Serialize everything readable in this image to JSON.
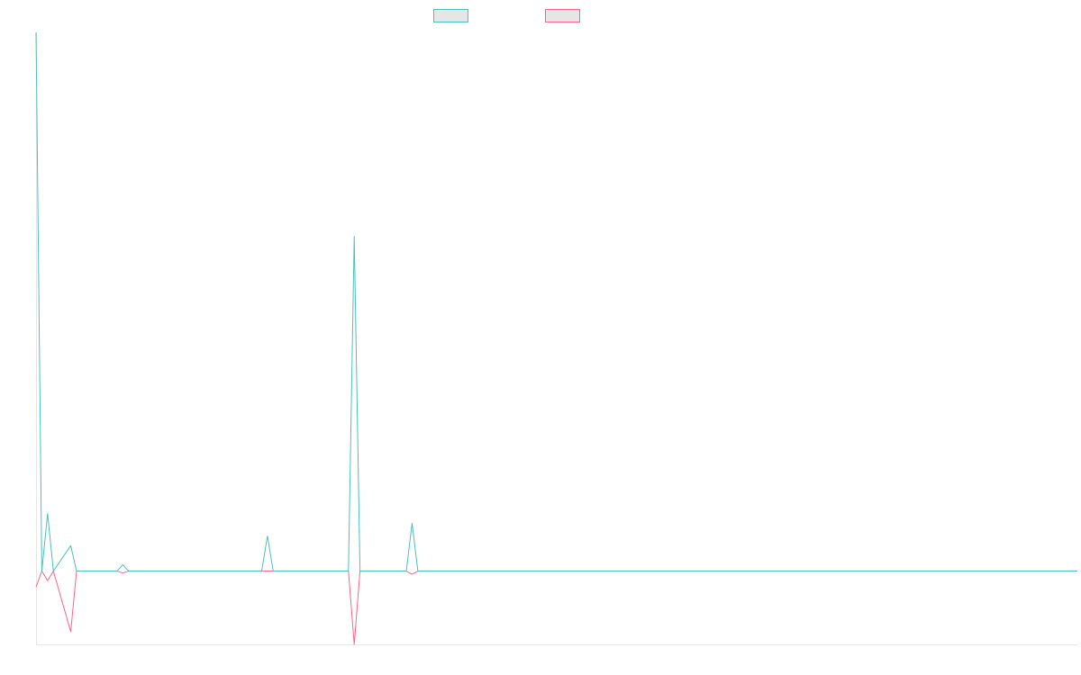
{
  "chart_data": {
    "type": "line",
    "title": "",
    "xlabel": "",
    "ylabel": "",
    "x_count": 181,
    "ylim": [
      -11.5,
      84.5
    ],
    "grid": false,
    "legend_position": "top",
    "series": [
      {
        "name": "",
        "color": "#4bc0c0",
        "fill": "#e6e6e6",
        "points": [
          [
            0,
            84.5
          ],
          [
            1,
            0
          ],
          [
            2,
            9
          ],
          [
            3,
            0
          ],
          [
            6,
            4
          ],
          [
            7,
            0
          ],
          [
            14,
            0
          ],
          [
            15,
            1
          ],
          [
            16,
            0
          ],
          [
            39,
            0
          ],
          [
            40,
            5.5
          ],
          [
            41,
            0
          ],
          [
            54,
            0
          ],
          [
            55,
            52.5
          ],
          [
            56,
            0
          ],
          [
            64,
            0
          ],
          [
            65,
            7.5
          ],
          [
            66,
            0
          ],
          [
            180,
            0
          ]
        ]
      },
      {
        "name": "",
        "color": "#ff6384",
        "fill": "#e6e6e6",
        "points": [
          [
            0,
            -2.5
          ],
          [
            1,
            0
          ],
          [
            2,
            -1.5
          ],
          [
            3,
            0
          ],
          [
            6,
            -9.5
          ],
          [
            7,
            0
          ],
          [
            14,
            0
          ],
          [
            15,
            -0.3
          ],
          [
            16,
            0
          ],
          [
            54,
            0
          ],
          [
            55,
            -11.5
          ],
          [
            56,
            0
          ],
          [
            64,
            0
          ],
          [
            65,
            -0.5
          ],
          [
            66,
            0
          ],
          [
            180,
            0
          ]
        ]
      }
    ]
  }
}
